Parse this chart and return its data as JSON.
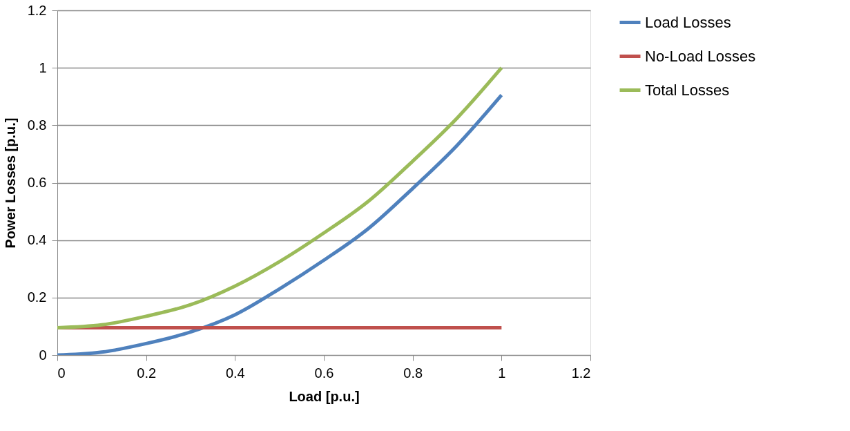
{
  "chart_data": {
    "type": "line",
    "xlabel": "Load [p.u.]",
    "ylabel": "Power Losses [p.u.]",
    "x": [
      0,
      0.1,
      0.2,
      0.3,
      0.4,
      0.5,
      0.6,
      0.7,
      0.8,
      0.9,
      1
    ],
    "series": [
      {
        "name": "Load Losses",
        "color": "#4f81bd",
        "values": [
          0,
          0.01,
          0.04,
          0.08,
          0.14,
          0.23,
          0.33,
          0.44,
          0.58,
          0.73,
          0.905
        ]
      },
      {
        "name": "No-Load Losses",
        "color": "#c0504d",
        "values": [
          0.095,
          0.095,
          0.095,
          0.095,
          0.095,
          0.095,
          0.095,
          0.095,
          0.095,
          0.095,
          0.095
        ]
      },
      {
        "name": "Total Losses",
        "color": "#9bbb59",
        "values": [
          0.095,
          0.105,
          0.135,
          0.175,
          0.24,
          0.325,
          0.425,
          0.535,
          0.675,
          0.825,
          1.0
        ]
      }
    ],
    "xlim": [
      0,
      1.2
    ],
    "xticks": [
      0,
      0.2,
      0.4,
      0.6,
      0.8,
      1,
      1.2
    ],
    "ylim": [
      0,
      1.2
    ],
    "yticks": [
      0,
      0.2,
      0.4,
      0.6,
      0.8,
      1,
      1.2
    ],
    "grid": "y",
    "legend": "right",
    "marker": "none",
    "line_style": "solid"
  }
}
